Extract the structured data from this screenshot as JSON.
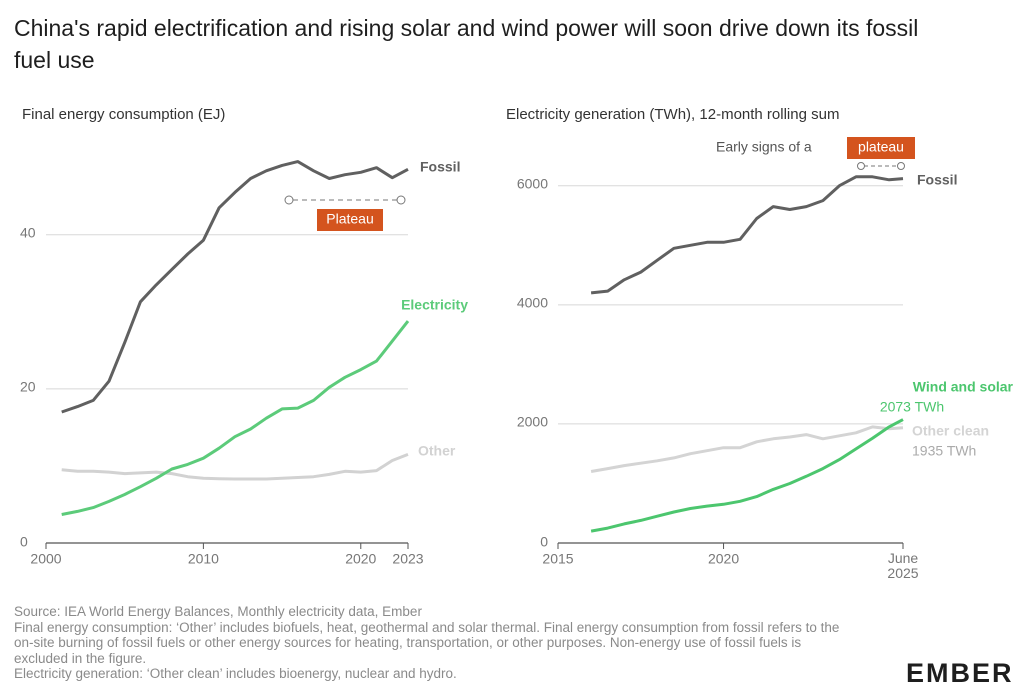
{
  "title": "China's rapid electrification and rising solar and wind power will soon drive down its fossil fuel use",
  "chart_data": [
    {
      "type": "line",
      "subtitle": "Final energy consumption (EJ)",
      "x": [
        2001,
        2002,
        2003,
        2004,
        2005,
        2006,
        2007,
        2008,
        2009,
        2010,
        2011,
        2012,
        2013,
        2014,
        2015,
        2016,
        2017,
        2018,
        2019,
        2020,
        2021,
        2022,
        2023
      ],
      "xlim": [
        2000,
        2023
      ],
      "xticks": [
        2000,
        2010,
        2020,
        2023
      ],
      "ylim": [
        0,
        51
      ],
      "yticks": [
        0,
        20,
        40
      ],
      "grid": true,
      "series": [
        {
          "name": "Fossil",
          "color": "#606060",
          "values": [
            17,
            17.7,
            18.5,
            21,
            26,
            31.3,
            33.5,
            35.5,
            37.5,
            39.3,
            43.5,
            45.5,
            47.3,
            48.3,
            49,
            49.5,
            48.3,
            47.3,
            47.8,
            48.1,
            48.7,
            47.4,
            48.5
          ]
        },
        {
          "name": "Electricity",
          "color": "#5ccb7a",
          "values": [
            3.7,
            4.1,
            4.6,
            5.4,
            6.3,
            7.3,
            8.4,
            9.6,
            10.2,
            11,
            12.3,
            13.8,
            14.8,
            16.2,
            17.4,
            17.5,
            18.5,
            20.2,
            21.5,
            22.5,
            23.6,
            26.2,
            28.8
          ]
        },
        {
          "name": "Other",
          "color": "#d2d2d2",
          "values": [
            9.5,
            9.3,
            9.3,
            9.2,
            9,
            9.1,
            9.2,
            9,
            8.6,
            8.4,
            8.35,
            8.3,
            8.3,
            8.3,
            8.4,
            8.5,
            8.6,
            8.9,
            9.3,
            9.2,
            9.4,
            10.7,
            11.5
          ]
        }
      ],
      "annotations": [
        "Plateau"
      ]
    },
    {
      "type": "line",
      "subtitle": "Electricity generation (TWh), 12-month rolling sum",
      "x": [
        2016,
        2016.5,
        2017,
        2017.5,
        2018,
        2018.5,
        2019,
        2019.5,
        2020,
        2020.5,
        2021,
        2021.5,
        2022,
        2022.5,
        2023,
        2023.5,
        2024,
        2024.5,
        2025,
        2025.42
      ],
      "xlim": [
        2015,
        2025.42
      ],
      "xticks": [
        2015,
        2020,
        {
          "value": 2025.42,
          "label": "June 2025"
        }
      ],
      "ylim": [
        0,
        6600
      ],
      "yticks": [
        0,
        2000,
        4000,
        6000
      ],
      "grid": true,
      "series": [
        {
          "name": "Fossil",
          "color": "#606060",
          "values": [
            4200,
            4230,
            4420,
            4550,
            4750,
            4950,
            5000,
            5050,
            5050,
            5100,
            5450,
            5650,
            5600,
            5650,
            5750,
            6000,
            6150,
            6150,
            6100,
            6120
          ]
        },
        {
          "name": "Wind and solar",
          "color": "#4cc66e",
          "values": [
            200,
            250,
            320,
            380,
            450,
            520,
            580,
            620,
            650,
            700,
            780,
            900,
            1000,
            1120,
            1250,
            1400,
            1580,
            1760,
            1950,
            2073
          ],
          "value_labels": [
            null,
            null,
            null,
            null,
            null,
            null,
            null,
            null,
            null,
            null,
            null,
            null,
            null,
            null,
            null,
            null,
            null,
            null,
            null,
            "2073 TWh"
          ]
        },
        {
          "name": "Other clean",
          "color": "#d4d4d4",
          "values": [
            1200,
            1250,
            1300,
            1340,
            1380,
            1430,
            1500,
            1550,
            1600,
            1600,
            1700,
            1750,
            1780,
            1820,
            1750,
            1800,
            1850,
            1950,
            1920,
            1935
          ],
          "value_labels": [
            null,
            null,
            null,
            null,
            null,
            null,
            null,
            null,
            null,
            null,
            null,
            null,
            null,
            null,
            null,
            null,
            null,
            null,
            null,
            "1935 TWh"
          ]
        }
      ],
      "annotations": [
        "Early signs of a",
        "plateau"
      ]
    }
  ],
  "footer": [
    "Source: IEA World Energy Balances, Monthly electricity data, Ember",
    "Final energy consumption: ‘Other’ includes biofuels, heat, geothermal and solar thermal. Final energy consumption from fossil refers to the on-site burning of fossil fuels or other energy sources for heating, transportation, or other purposes. Non-energy use of fossil fuels is excluded in the figure.",
    "Electricity generation: ‘Other clean’ includes bioenergy, nuclear and hydro."
  ],
  "logo": "EMBER"
}
